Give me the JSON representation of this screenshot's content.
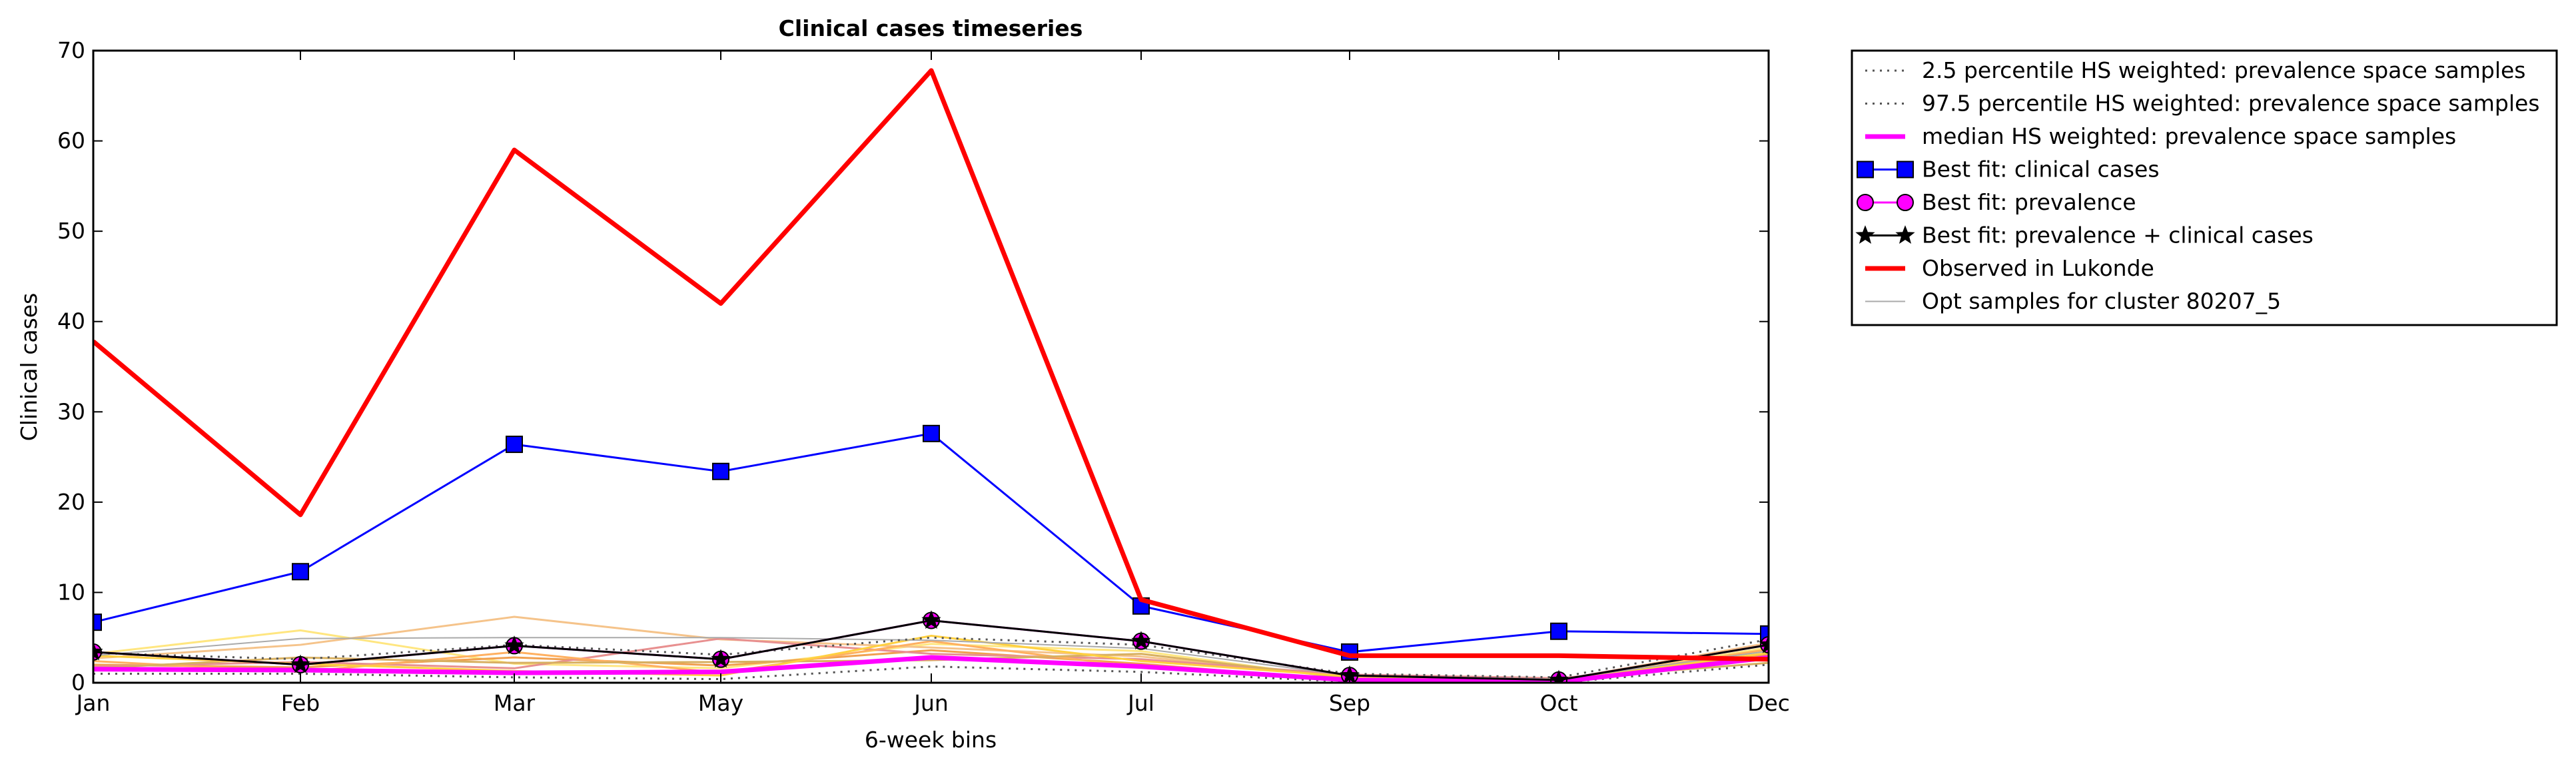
{
  "chart_data": {
    "type": "line",
    "title": "Clinical cases timeseries",
    "xlabel": "6-week bins",
    "ylabel": "Clinical cases",
    "categories": [
      "Jan",
      "Feb",
      "Mar",
      "May",
      "Jun",
      "Jul",
      "Sep",
      "Oct",
      "Dec"
    ],
    "ylim": [
      0,
      70
    ],
    "yticks": [
      0,
      10,
      20,
      30,
      40,
      50,
      60,
      70
    ],
    "grid": false,
    "legend_position": "outside-top-right",
    "series": [
      {
        "name": "2.5 percentile HS weighted: prevalence space samples",
        "color": "#555555",
        "style": "dotted",
        "marker": "none",
        "values": [
          1.0,
          1.0,
          0.6,
          0.4,
          1.8,
          1.2,
          0.1,
          0.0,
          2.0
        ]
      },
      {
        "name": "97.5 percentile HS weighted: prevalence space samples",
        "color": "#555555",
        "style": "dotted",
        "marker": "none",
        "values": [
          3.3,
          2.6,
          4.2,
          3.1,
          5.0,
          4.2,
          1.0,
          0.6,
          4.8
        ]
      },
      {
        "name": "median HS weighted: prevalence space samples",
        "color": "#ff00ff",
        "style": "solid-thick",
        "marker": "none",
        "values": [
          1.5,
          1.4,
          1.1,
          1.2,
          2.8,
          1.8,
          0.3,
          0.1,
          2.8
        ]
      },
      {
        "name": "Best fit: clinical cases",
        "color": "#0000ff",
        "style": "solid",
        "marker": "square",
        "values": [
          6.7,
          12.3,
          26.4,
          23.4,
          27.6,
          8.5,
          3.4,
          5.7,
          5.4
        ]
      },
      {
        "name": "Best fit: prevalence",
        "color": "#ff00ff",
        "style": "solid",
        "marker": "circle",
        "values": [
          3.4,
          2.0,
          4.1,
          2.6,
          6.9,
          4.6,
          0.8,
          0.3,
          4.2
        ]
      },
      {
        "name": "Best fit: prevalence + clinical cases",
        "color": "#000000",
        "style": "solid",
        "marker": "star",
        "values": [
          3.4,
          2.0,
          4.1,
          2.6,
          6.9,
          4.6,
          0.8,
          0.3,
          4.2
        ]
      },
      {
        "name": "Observed in Lukonde",
        "color": "#ff0000",
        "style": "solid-thick",
        "marker": "none",
        "values": [
          37.8,
          18.6,
          59.0,
          42.0,
          67.8,
          9.2,
          3.0,
          3.0,
          2.6
        ]
      },
      {
        "name": "Opt samples for cluster 80207_5",
        "color": "#aaaaaa",
        "style": "solid-thin",
        "marker": "none",
        "values": [
          3.0,
          4.9,
          5.0,
          5.0,
          4.7,
          3.8,
          0.8,
          0.4,
          3.5
        ]
      }
    ],
    "sample_lines": [
      {
        "color": "#ffe680",
        "values": [
          3.2,
          5.8,
          2.1,
          1.6,
          4.3,
          3.5,
          0.4,
          0.2,
          3.9
        ]
      },
      {
        "color": "#f5c38a",
        "values": [
          2.7,
          4.2,
          7.3,
          4.8,
          3.9,
          2.9,
          0.6,
          0.3,
          4.4
        ]
      },
      {
        "color": "#f0a050",
        "values": [
          2.0,
          1.7,
          2.8,
          1.9,
          3.6,
          2.1,
          0.2,
          0.1,
          3.1
        ]
      },
      {
        "color": "#e89090",
        "values": [
          1.8,
          2.3,
          1.6,
          4.9,
          3.2,
          2.6,
          0.9,
          0.5,
          2.6
        ]
      },
      {
        "color": "#ffb060",
        "values": [
          2.4,
          1.2,
          3.4,
          1.1,
          4.6,
          1.7,
          0.3,
          0.2,
          3.7
        ]
      },
      {
        "color": "#d8b060",
        "values": [
          1.6,
          2.8,
          2.2,
          2.3,
          2.5,
          3.2,
          0.5,
          0.4,
          2.2
        ]
      },
      {
        "color": "#ffd040",
        "values": [
          3.0,
          2.1,
          1.3,
          0.8,
          5.2,
          2.4,
          0.7,
          0.3,
          3.3
        ]
      }
    ]
  }
}
